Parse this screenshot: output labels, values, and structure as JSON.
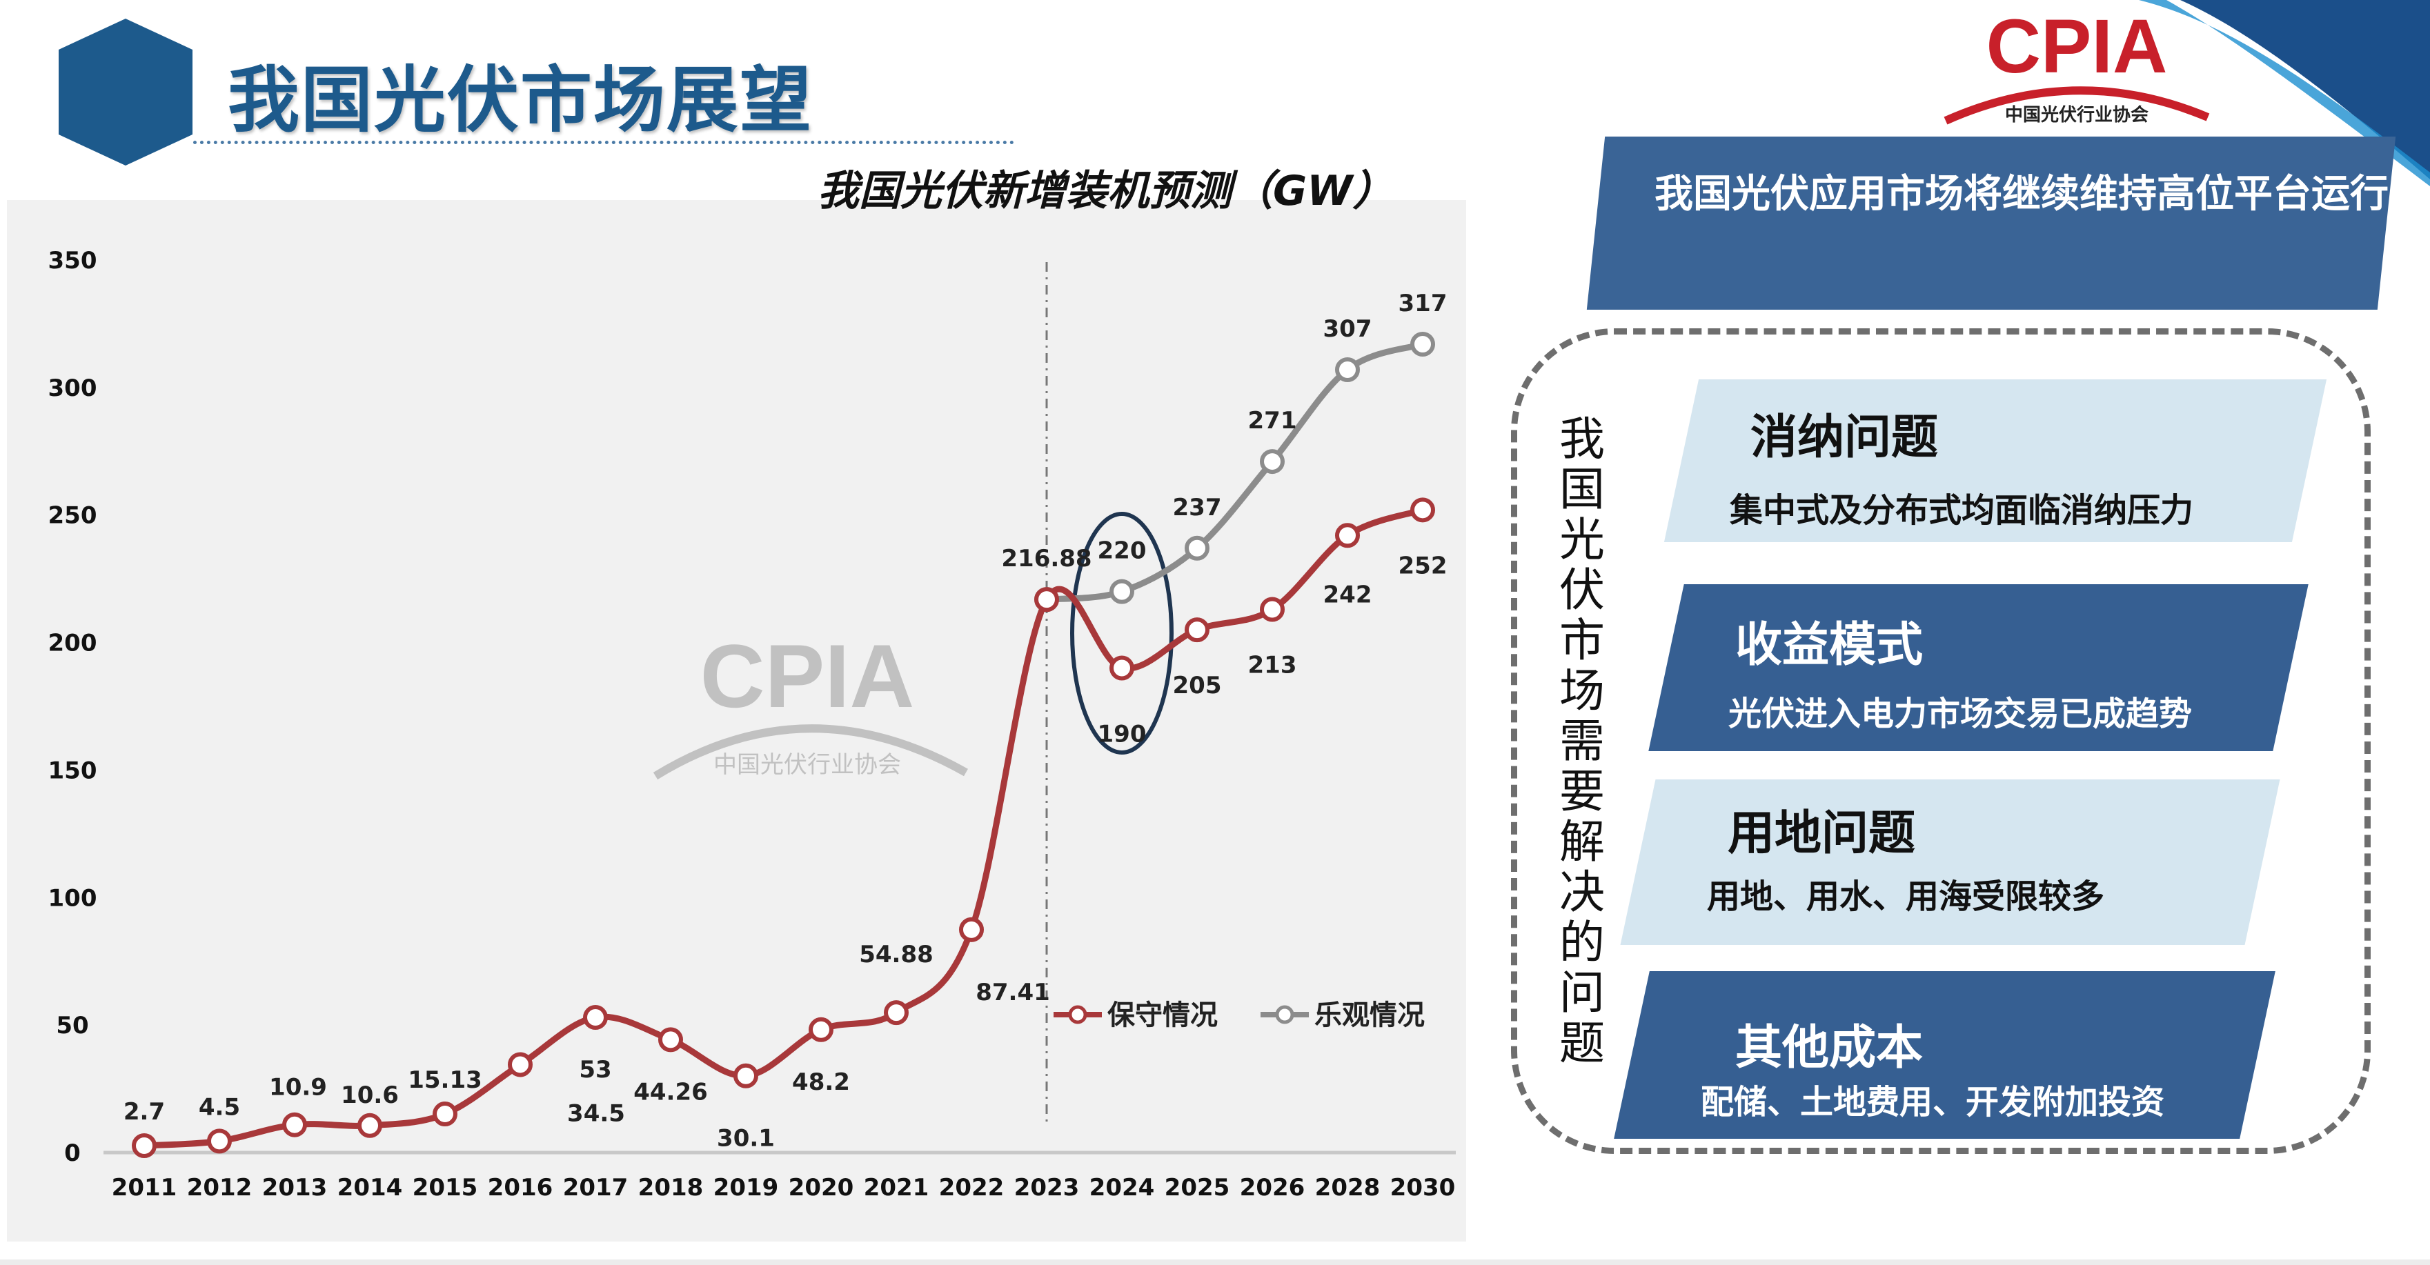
{
  "header": {
    "title": "我国光伏市场展望",
    "brand_color": "#1d5a8c"
  },
  "logo": {
    "text": "CPIA",
    "subtext": "中国光伏行业协会",
    "color": "#c8202a"
  },
  "watermark": {
    "text": "CPIA",
    "subtext": "中国光伏行业协会"
  },
  "chart_data": {
    "type": "line",
    "title": "我国光伏新增装机预测（GW）",
    "categories": [
      "2011",
      "2012",
      "2013",
      "2014",
      "2015",
      "2016",
      "2017",
      "2018",
      "2019",
      "2020",
      "2021",
      "2022",
      "2023",
      "2024",
      "2025",
      "2026",
      "2028",
      "2030"
    ],
    "ylim": [
      0,
      350
    ],
    "yticks": [
      0,
      50,
      100,
      150,
      200,
      250,
      300,
      350
    ],
    "grid": false,
    "legend_position": "bottom-right",
    "series": [
      {
        "name": "保守情况",
        "color": "#a8383a",
        "values": [
          2.7,
          4.5,
          10.9,
          10.6,
          15.13,
          34.5,
          53,
          44.26,
          30.1,
          48.2,
          54.88,
          87.41,
          216.88,
          190,
          205,
          213,
          242,
          252
        ],
        "labels": [
          "2.7",
          "4.5",
          "10.9",
          "10.6",
          "15.13",
          "34.5",
          "53",
          "44.26",
          "30.1",
          "48.2",
          "54.88",
          "87.41",
          "216.88",
          "190",
          "205",
          "213",
          "242",
          "252"
        ]
      },
      {
        "name": "乐观情况",
        "color": "#8c8c8c",
        "values": [
          null,
          null,
          null,
          null,
          null,
          null,
          null,
          null,
          null,
          null,
          null,
          null,
          216.88,
          220,
          237,
          271,
          307,
          317
        ],
        "labels": [
          "",
          "",
          "",
          "",
          "",
          "",
          "",
          "",
          "",
          "",
          "",
          "",
          "",
          "220",
          "237",
          "271",
          "307",
          "317"
        ]
      }
    ],
    "annotations": {
      "divider_at": "2023",
      "highlight_ellipse_at": "2024",
      "highlight_color": "#1f3550"
    }
  },
  "headline": "我国光伏应用市场将继续维持高位平台运行",
  "issues": {
    "title": "我国光伏市场需要解决的问题",
    "cards": [
      {
        "title": "消纳问题",
        "desc": "集中式及分布式均面临消纳压力",
        "style": "light"
      },
      {
        "title": "收益模式",
        "desc": "光伏进入电力市场交易已成趋势",
        "style": "dark"
      },
      {
        "title": "用地问题",
        "desc": "用地、用水、用海受限较多",
        "style": "light"
      },
      {
        "title": "其他成本",
        "desc": "配储、土地费用、开发附加投资",
        "style": "dark"
      }
    ]
  }
}
